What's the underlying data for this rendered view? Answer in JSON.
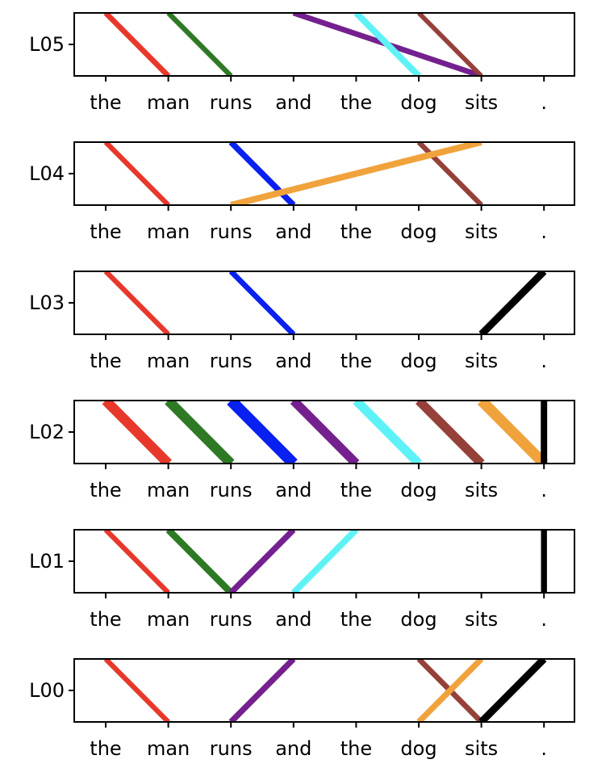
{
  "chart_data": {
    "type": "attention-flow",
    "tokens": [
      "the",
      "man",
      "runs",
      "and",
      "the",
      "dog",
      "sits",
      "."
    ],
    "colors": {
      "the": "#e8382b",
      "man": "#2e7a24",
      "runs": "#0820f0",
      "and": "#74208e",
      "the2": "#5ef2f6",
      "dog": "#96403a",
      "sits": "#f0a33c",
      ".": "#000000"
    },
    "layers": [
      {
        "label": "L05",
        "edges": [
          {
            "from": 0,
            "to": 1,
            "weight": 0.35,
            "color": "#e8382b"
          },
          {
            "from": 1,
            "to": 2,
            "weight": 0.3,
            "color": "#2e7a24"
          },
          {
            "from": 3,
            "to": 6,
            "weight": 0.35,
            "color": "#74208e"
          },
          {
            "from": 4,
            "to": 5,
            "weight": 0.45,
            "color": "#5ef2f6"
          },
          {
            "from": 5,
            "to": 6,
            "weight": 0.25,
            "color": "#96403a"
          }
        ]
      },
      {
        "label": "L04",
        "edges": [
          {
            "from": 0,
            "to": 1,
            "weight": 0.3,
            "color": "#e8382b"
          },
          {
            "from": 2,
            "to": 3,
            "weight": 0.4,
            "color": "#0820f0"
          },
          {
            "from": 5,
            "to": 6,
            "weight": 0.3,
            "color": "#96403a"
          },
          {
            "from": 6,
            "to": 2,
            "weight": 0.45,
            "color": "#f0a33c"
          }
        ]
      },
      {
        "label": "L03",
        "edges": [
          {
            "from": 0,
            "to": 1,
            "weight": 0.3,
            "color": "#e8382b"
          },
          {
            "from": 2,
            "to": 3,
            "weight": 0.35,
            "color": "#0820f0"
          },
          {
            "from": 7,
            "to": 6,
            "weight": 0.55,
            "color": "#000000"
          }
        ]
      },
      {
        "label": "L02",
        "edges": [
          {
            "from": 0,
            "to": 1,
            "weight": 0.85,
            "color": "#e8382b"
          },
          {
            "from": 1,
            "to": 2,
            "weight": 0.85,
            "color": "#2e7a24"
          },
          {
            "from": 2,
            "to": 3,
            "weight": 1.0,
            "color": "#0820f0"
          },
          {
            "from": 3,
            "to": 4,
            "weight": 0.75,
            "color": "#74208e"
          },
          {
            "from": 4,
            "to": 5,
            "weight": 0.75,
            "color": "#5ef2f6"
          },
          {
            "from": 5,
            "to": 6,
            "weight": 0.75,
            "color": "#96403a"
          },
          {
            "from": 6,
            "to": 7,
            "weight": 0.95,
            "color": "#f0a33c"
          },
          {
            "from": 7,
            "to": 7,
            "weight": 0.45,
            "color": "#000000"
          }
        ]
      },
      {
        "label": "L01",
        "edges": [
          {
            "from": 0,
            "to": 1,
            "weight": 0.3,
            "color": "#e8382b"
          },
          {
            "from": 1,
            "to": 2,
            "weight": 0.5,
            "color": "#2e7a24"
          },
          {
            "from": 3,
            "to": 2,
            "weight": 0.4,
            "color": "#74208e"
          },
          {
            "from": 4,
            "to": 3,
            "weight": 0.45,
            "color": "#5ef2f6"
          },
          {
            "from": 7,
            "to": 7,
            "weight": 0.4,
            "color": "#000000"
          }
        ]
      },
      {
        "label": "L00",
        "edges": [
          {
            "from": 0,
            "to": 1,
            "weight": 0.3,
            "color": "#e8382b"
          },
          {
            "from": 3,
            "to": 2,
            "weight": 0.4,
            "color": "#74208e"
          },
          {
            "from": 5,
            "to": 6,
            "weight": 0.35,
            "color": "#96403a"
          },
          {
            "from": 6,
            "to": 5,
            "weight": 0.4,
            "color": "#f0a33c"
          },
          {
            "from": 7,
            "to": 6,
            "weight": 0.55,
            "color": "#000000"
          }
        ]
      }
    ]
  }
}
